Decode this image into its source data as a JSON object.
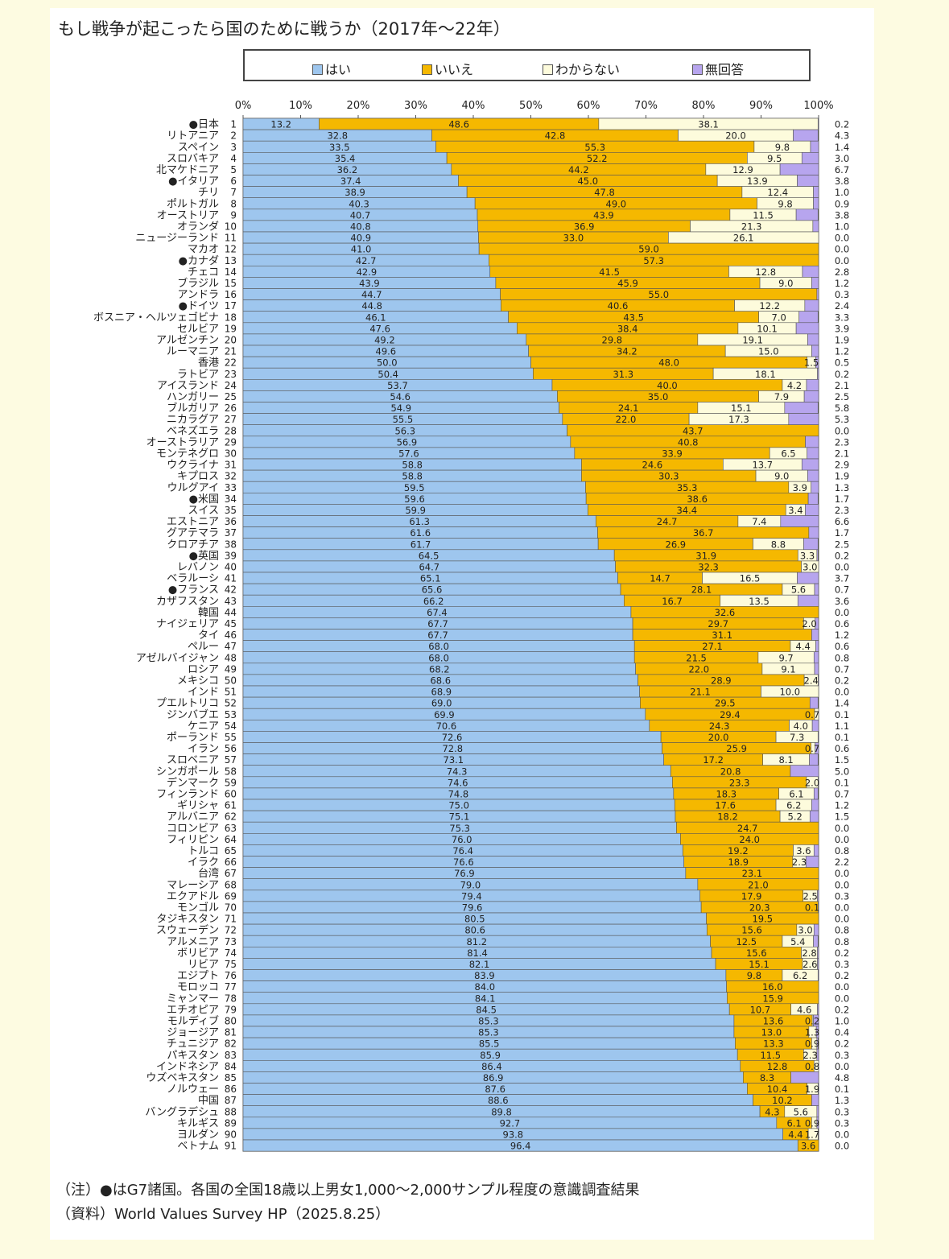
{
  "title": "もし戦争が起こったら国のために戦うか（2017年〜22年）",
  "notes": {
    "note1": "（注）●はG7諸国。各国の全国18歳以上男女1,000〜2,000サンプル程度の意識調査結果",
    "note2": "（資料）World Values Survey HP（2025.8.25）"
  },
  "chart_data": {
    "type": "bar",
    "orientation": "horizontal-stacked-100",
    "x_ticks": [
      "0%",
      "10%",
      "20%",
      "30%",
      "40%",
      "50%",
      "60%",
      "70%",
      "80%",
      "90%",
      "100%"
    ],
    "xlim": [
      0,
      100
    ],
    "legend_position": "top",
    "series": [
      {
        "name": "はい",
        "color": "#9ec6ee"
      },
      {
        "name": "いいえ",
        "color": "#f5b800"
      },
      {
        "name": "わからない",
        "color": "#fdfbdc"
      },
      {
        "name": "無回答",
        "color": "#b7a5ee"
      }
    ],
    "rows": [
      {
        "label": "●日本",
        "rank": "1",
        "yes": "13.2",
        "no": "48.6",
        "dk": "38.1",
        "na": "0.2"
      },
      {
        "label": "リトアニア",
        "rank": "2",
        "yes": "32.8",
        "no": "42.8",
        "dk": "20.0",
        "na": "4.3"
      },
      {
        "label": "スペイン",
        "rank": "3",
        "yes": "33.5",
        "no": "55.3",
        "dk": "9.8",
        "na": "1.4"
      },
      {
        "label": "スロバキア",
        "rank": "4",
        "yes": "35.4",
        "no": "52.2",
        "dk": "9.5",
        "na": "3.0"
      },
      {
        "label": "北マケドニア",
        "rank": "5",
        "yes": "36.2",
        "no": "44.2",
        "dk": "12.9",
        "na": "6.7"
      },
      {
        "label": "●イタリア",
        "rank": "6",
        "yes": "37.4",
        "no": "45.0",
        "dk": "13.9",
        "na": "3.8"
      },
      {
        "label": "チリ",
        "rank": "7",
        "yes": "38.9",
        "no": "47.8",
        "dk": "12.4",
        "na": "1.0"
      },
      {
        "label": "ポルトガル",
        "rank": "8",
        "yes": "40.3",
        "no": "49.0",
        "dk": "9.8",
        "na": "0.9"
      },
      {
        "label": "オーストリア",
        "rank": "9",
        "yes": "40.7",
        "no": "43.9",
        "dk": "11.5",
        "na": "3.8"
      },
      {
        "label": "オランダ",
        "rank": "10",
        "yes": "40.8",
        "no": "36.9",
        "dk": "21.3",
        "na": "1.0"
      },
      {
        "label": "ニュージーランド",
        "rank": "11",
        "yes": "40.9",
        "no": "33.0",
        "dk": "26.1",
        "na": "0.0"
      },
      {
        "label": "マカオ",
        "rank": "12",
        "yes": "41.0",
        "no": "59.0",
        "dk": "",
        "na": "0.0"
      },
      {
        "label": "●カナダ",
        "rank": "13",
        "yes": "42.7",
        "no": "57.3",
        "dk": "",
        "na": "0.0"
      },
      {
        "label": "チェコ",
        "rank": "14",
        "yes": "42.9",
        "no": "41.5",
        "dk": "12.8",
        "na": "2.8"
      },
      {
        "label": "ブラジル",
        "rank": "15",
        "yes": "43.9",
        "no": "45.9",
        "dk": "9.0",
        "na": "1.2"
      },
      {
        "label": "アンドラ",
        "rank": "16",
        "yes": "44.7",
        "no": "55.0",
        "dk": "",
        "na": "0.3"
      },
      {
        "label": "●ドイツ",
        "rank": "17",
        "yes": "44.8",
        "no": "40.6",
        "dk": "12.2",
        "na": "2.4"
      },
      {
        "label": "ボスニア・ヘルツェゴビナ",
        "rank": "18",
        "yes": "46.1",
        "no": "43.5",
        "dk": "7.0",
        "na": "3.3"
      },
      {
        "label": "セルビア",
        "rank": "19",
        "yes": "47.6",
        "no": "38.4",
        "dk": "10.1",
        "na": "3.9"
      },
      {
        "label": "アルゼンチン",
        "rank": "20",
        "yes": "49.2",
        "no": "29.8",
        "dk": "19.1",
        "na": "1.9"
      },
      {
        "label": "ルーマニア",
        "rank": "21",
        "yes": "49.6",
        "no": "34.2",
        "dk": "15.0",
        "na": "1.2"
      },
      {
        "label": "香港",
        "rank": "22",
        "yes": "50.0",
        "no": "48.0",
        "dk": "1.5",
        "na": "0.5"
      },
      {
        "label": "ラトビア",
        "rank": "23",
        "yes": "50.4",
        "no": "31.3",
        "dk": "18.1",
        "na": "0.2"
      },
      {
        "label": "アイスランド",
        "rank": "24",
        "yes": "53.7",
        "no": "40.0",
        "dk": "4.2",
        "na": "2.1"
      },
      {
        "label": "ハンガリー",
        "rank": "25",
        "yes": "54.6",
        "no": "35.0",
        "dk": "7.9",
        "na": "2.5"
      },
      {
        "label": "ブルガリア",
        "rank": "26",
        "yes": "54.9",
        "no": "24.1",
        "dk": "15.1",
        "na": "5.8"
      },
      {
        "label": "ニカラグア",
        "rank": "27",
        "yes": "55.5",
        "no": "22.0",
        "dk": "17.3",
        "na": "5.3"
      },
      {
        "label": "ベネズエラ",
        "rank": "28",
        "yes": "56.3",
        "no": "43.7",
        "dk": "",
        "na": "0.0"
      },
      {
        "label": "オーストラリア",
        "rank": "29",
        "yes": "56.9",
        "no": "40.8",
        "dk": "",
        "na": "2.3"
      },
      {
        "label": "モンテネグロ",
        "rank": "30",
        "yes": "57.6",
        "no": "33.9",
        "dk": "6.5",
        "na": "2.1"
      },
      {
        "label": "ウクライナ",
        "rank": "31",
        "yes": "58.8",
        "no": "24.6",
        "dk": "13.7",
        "na": "2.9"
      },
      {
        "label": "キプロス",
        "rank": "32",
        "yes": "58.8",
        "no": "30.3",
        "dk": "9.0",
        "na": "1.9"
      },
      {
        "label": "ウルグアイ",
        "rank": "33",
        "yes": "59.5",
        "no": "35.3",
        "dk": "3.9",
        "na": "1.3"
      },
      {
        "label": "●米国",
        "rank": "34",
        "yes": "59.6",
        "no": "38.6",
        "dk": "",
        "na": "1.7"
      },
      {
        "label": "スイス",
        "rank": "35",
        "yes": "59.9",
        "no": "34.4",
        "dk": "3.4",
        "na": "2.3"
      },
      {
        "label": "エストニア",
        "rank": "36",
        "yes": "61.3",
        "no": "24.7",
        "dk": "7.4",
        "na": "6.6"
      },
      {
        "label": "グアテマラ",
        "rank": "37",
        "yes": "61.6",
        "no": "36.7",
        "dk": "",
        "na": "1.7"
      },
      {
        "label": "クロアチア",
        "rank": "38",
        "yes": "61.7",
        "no": "26.9",
        "dk": "8.8",
        "na": "2.5"
      },
      {
        "label": "●英国",
        "rank": "39",
        "yes": "64.5",
        "no": "31.9",
        "dk": "3.3",
        "na": "0.2"
      },
      {
        "label": "レバノン",
        "rank": "40",
        "yes": "64.7",
        "no": "32.3",
        "dk": "3.0",
        "na": "0.0"
      },
      {
        "label": "ベラルーシ",
        "rank": "41",
        "yes": "65.1",
        "no": "14.7",
        "dk": "16.5",
        "na": "3.7"
      },
      {
        "label": "●フランス",
        "rank": "42",
        "yes": "65.6",
        "no": "28.1",
        "dk": "5.6",
        "na": "0.7"
      },
      {
        "label": "カザフスタン",
        "rank": "43",
        "yes": "66.2",
        "no": "16.7",
        "dk": "13.5",
        "na": "3.6"
      },
      {
        "label": "韓国",
        "rank": "44",
        "yes": "67.4",
        "no": "32.6",
        "dk": "",
        "na": "0.0"
      },
      {
        "label": "ナイジェリア",
        "rank": "45",
        "yes": "67.7",
        "no": "29.7",
        "dk": "2.0",
        "na": "0.6"
      },
      {
        "label": "タイ",
        "rank": "46",
        "yes": "67.7",
        "no": "31.1",
        "dk": "",
        "na": "1.2"
      },
      {
        "label": "ペルー",
        "rank": "47",
        "yes": "68.0",
        "no": "27.1",
        "dk": "4.4",
        "na": "0.6"
      },
      {
        "label": "アゼルバイジャン",
        "rank": "48",
        "yes": "68.0",
        "no": "21.5",
        "dk": "9.7",
        "na": "0.8"
      },
      {
        "label": "ロシア",
        "rank": "49",
        "yes": "68.2",
        "no": "22.0",
        "dk": "9.1",
        "na": "0.7"
      },
      {
        "label": "メキシコ",
        "rank": "50",
        "yes": "68.6",
        "no": "28.9",
        "dk": "2.4",
        "na": "0.2"
      },
      {
        "label": "インド",
        "rank": "51",
        "yes": "68.9",
        "no": "21.1",
        "dk": "10.0",
        "na": "0.0"
      },
      {
        "label": "プエルトリコ",
        "rank": "52",
        "yes": "69.0",
        "no": "29.5",
        "dk": "",
        "na": "1.4"
      },
      {
        "label": "ジンバブエ",
        "rank": "53",
        "yes": "69.9",
        "no": "29.4",
        "dk": "0.7",
        "na": "0.1"
      },
      {
        "label": "ケニア",
        "rank": "54",
        "yes": "70.6",
        "no": "24.3",
        "dk": "4.0",
        "na": "1.1"
      },
      {
        "label": "ポーランド",
        "rank": "55",
        "yes": "72.6",
        "no": "20.0",
        "dk": "7.3",
        "na": "0.1"
      },
      {
        "label": "イラン",
        "rank": "56",
        "yes": "72.8",
        "no": "25.9",
        "dk": "0.7",
        "na": "0.6"
      },
      {
        "label": "スロベニア",
        "rank": "57",
        "yes": "73.1",
        "no": "17.2",
        "dk": "8.1",
        "na": "1.5"
      },
      {
        "label": "シンガポール",
        "rank": "58",
        "yes": "74.3",
        "no": "20.8",
        "dk": "",
        "na": "5.0"
      },
      {
        "label": "デンマーク",
        "rank": "59",
        "yes": "74.6",
        "no": "23.3",
        "dk": "2.0",
        "na": "0.1"
      },
      {
        "label": "フィンランド",
        "rank": "60",
        "yes": "74.8",
        "no": "18.3",
        "dk": "6.1",
        "na": "0.7"
      },
      {
        "label": "ギリシャ",
        "rank": "61",
        "yes": "75.0",
        "no": "17.6",
        "dk": "6.2",
        "na": "1.2"
      },
      {
        "label": "アルバニア",
        "rank": "62",
        "yes": "75.1",
        "no": "18.2",
        "dk": "5.2",
        "na": "1.5"
      },
      {
        "label": "コロンビア",
        "rank": "63",
        "yes": "75.3",
        "no": "24.7",
        "dk": "",
        "na": "0.0"
      },
      {
        "label": "フィリピン",
        "rank": "64",
        "yes": "76.0",
        "no": "24.0",
        "dk": "",
        "na": "0.0"
      },
      {
        "label": "トルコ",
        "rank": "65",
        "yes": "76.4",
        "no": "19.2",
        "dk": "3.6",
        "na": "0.8"
      },
      {
        "label": "イラク",
        "rank": "66",
        "yes": "76.6",
        "no": "18.9",
        "dk": "2.3",
        "na": "2.2"
      },
      {
        "label": "台湾",
        "rank": "67",
        "yes": "76.9",
        "no": "23.1",
        "dk": "",
        "na": "0.0"
      },
      {
        "label": "マレーシア",
        "rank": "68",
        "yes": "79.0",
        "no": "21.0",
        "dk": "",
        "na": "0.0"
      },
      {
        "label": "エクアドル",
        "rank": "69",
        "yes": "79.4",
        "no": "17.9",
        "dk": "2.5",
        "na": "0.3"
      },
      {
        "label": "モンゴル",
        "rank": "70",
        "yes": "79.6",
        "no": "20.3",
        "dk": "0.1",
        "na": "0.0"
      },
      {
        "label": "タジキスタン",
        "rank": "71",
        "yes": "80.5",
        "no": "19.5",
        "dk": "",
        "na": "0.0"
      },
      {
        "label": "スウェーデン",
        "rank": "72",
        "yes": "80.6",
        "no": "15.6",
        "dk": "3.0",
        "na": "0.8"
      },
      {
        "label": "アルメニア",
        "rank": "73",
        "yes": "81.2",
        "no": "12.5",
        "dk": "5.4",
        "na": "0.8"
      },
      {
        "label": "ボリビア",
        "rank": "74",
        "yes": "81.4",
        "no": "15.6",
        "dk": "2.8",
        "na": "0.2"
      },
      {
        "label": "リビア",
        "rank": "75",
        "yes": "82.1",
        "no": "15.1",
        "dk": "2.6",
        "na": "0.3"
      },
      {
        "label": "エジプト",
        "rank": "76",
        "yes": "83.9",
        "no": "9.8",
        "dk": "6.2",
        "na": "0.2"
      },
      {
        "label": "モロッコ",
        "rank": "77",
        "yes": "84.0",
        "no": "16.0",
        "dk": "",
        "na": "0.0"
      },
      {
        "label": "ミャンマー",
        "rank": "78",
        "yes": "84.1",
        "no": "15.9",
        "dk": "",
        "na": "0.0"
      },
      {
        "label": "エチオピア",
        "rank": "79",
        "yes": "84.5",
        "no": "10.7",
        "dk": "4.6",
        "na": "0.2"
      },
      {
        "label": "モルディブ",
        "rank": "80",
        "yes": "85.3",
        "no": "13.6",
        "dk": "0.2",
        "na": "1.0"
      },
      {
        "label": "ジョージア",
        "rank": "81",
        "yes": "85.3",
        "no": "13.0",
        "dk": "1.3",
        "na": "0.4"
      },
      {
        "label": "チュニジア",
        "rank": "82",
        "yes": "85.5",
        "no": "13.3",
        "dk": "0.9",
        "na": "0.2"
      },
      {
        "label": "パキスタン",
        "rank": "83",
        "yes": "85.9",
        "no": "11.5",
        "dk": "2.3",
        "na": "0.3"
      },
      {
        "label": "インドネシア",
        "rank": "84",
        "yes": "86.4",
        "no": "12.8",
        "dk": "0.8",
        "na": "0.0"
      },
      {
        "label": "ウズベキスタン",
        "rank": "85",
        "yes": "86.9",
        "no": "8.3",
        "dk": "",
        "na": "4.8"
      },
      {
        "label": "ノルウェー",
        "rank": "86",
        "yes": "87.6",
        "no": "10.4",
        "dk": "1.9",
        "na": "0.1"
      },
      {
        "label": "中国",
        "rank": "87",
        "yes": "88.6",
        "no": "10.2",
        "dk": "",
        "na": "1.3"
      },
      {
        "label": "バングラデシュ",
        "rank": "88",
        "yes": "89.8",
        "no": "4.3",
        "dk": "5.6",
        "na": "0.3"
      },
      {
        "label": "キルギス",
        "rank": "89",
        "yes": "92.7",
        "no": "6.1",
        "dk": "0.9",
        "na": "0.3"
      },
      {
        "label": "ヨルダン",
        "rank": "90",
        "yes": "93.8",
        "no": "4.4",
        "dk": "1.7",
        "na": "0.0"
      },
      {
        "label": "ベトナム",
        "rank": "91",
        "yes": "96.4",
        "no": "3.6",
        "dk": "",
        "na": "0.0"
      }
    ]
  }
}
